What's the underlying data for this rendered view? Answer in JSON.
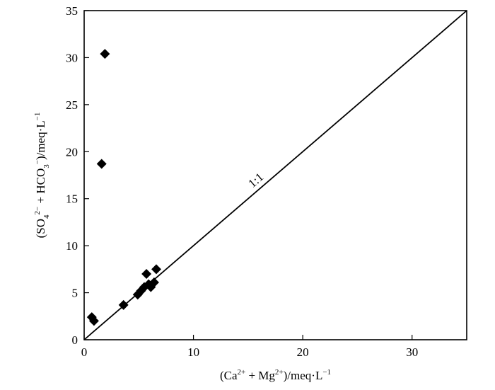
{
  "chart_data": {
    "type": "scatter",
    "x_ticks": [
      "0",
      "10",
      "20",
      "30"
    ],
    "x_tick_values": [
      0,
      10,
      20,
      30
    ],
    "y_ticks": [
      "0",
      "5",
      "10",
      "15",
      "20",
      "25",
      "30",
      "35"
    ],
    "y_tick_values": [
      0,
      5,
      10,
      15,
      20,
      25,
      30,
      35
    ],
    "xlim": [
      0,
      35
    ],
    "ylim": [
      0,
      35
    ],
    "grid": false,
    "marker": "diamond",
    "marker_color": "#000000",
    "xlabel": {
      "p1": "(Ca",
      "s1": "2+",
      "p2": " + Mg",
      "s2": "2+",
      "p3": ")/meq·L",
      "s3": "−1"
    },
    "ylabel": {
      "p1": "(SO",
      "sub1": "4",
      "s1": "2−",
      "p2": " + HCO",
      "sub2": "3",
      "s2": "−",
      "p3": ")/meq·L",
      "s3": "−1"
    },
    "reference_line": {
      "label": "1:1",
      "x": [
        0,
        35
      ],
      "y": [
        0,
        35
      ]
    },
    "points": [
      {
        "x": 1.9,
        "y": 30.4
      },
      {
        "x": 1.6,
        "y": 18.7
      },
      {
        "x": 0.7,
        "y": 2.4
      },
      {
        "x": 0.9,
        "y": 2.0
      },
      {
        "x": 3.6,
        "y": 3.7
      },
      {
        "x": 4.9,
        "y": 4.8
      },
      {
        "x": 5.2,
        "y": 5.2
      },
      {
        "x": 5.5,
        "y": 5.6
      },
      {
        "x": 5.7,
        "y": 7.0
      },
      {
        "x": 5.9,
        "y": 5.9
      },
      {
        "x": 6.1,
        "y": 5.6
      },
      {
        "x": 6.4,
        "y": 6.1
      },
      {
        "x": 6.6,
        "y": 7.5
      }
    ]
  }
}
